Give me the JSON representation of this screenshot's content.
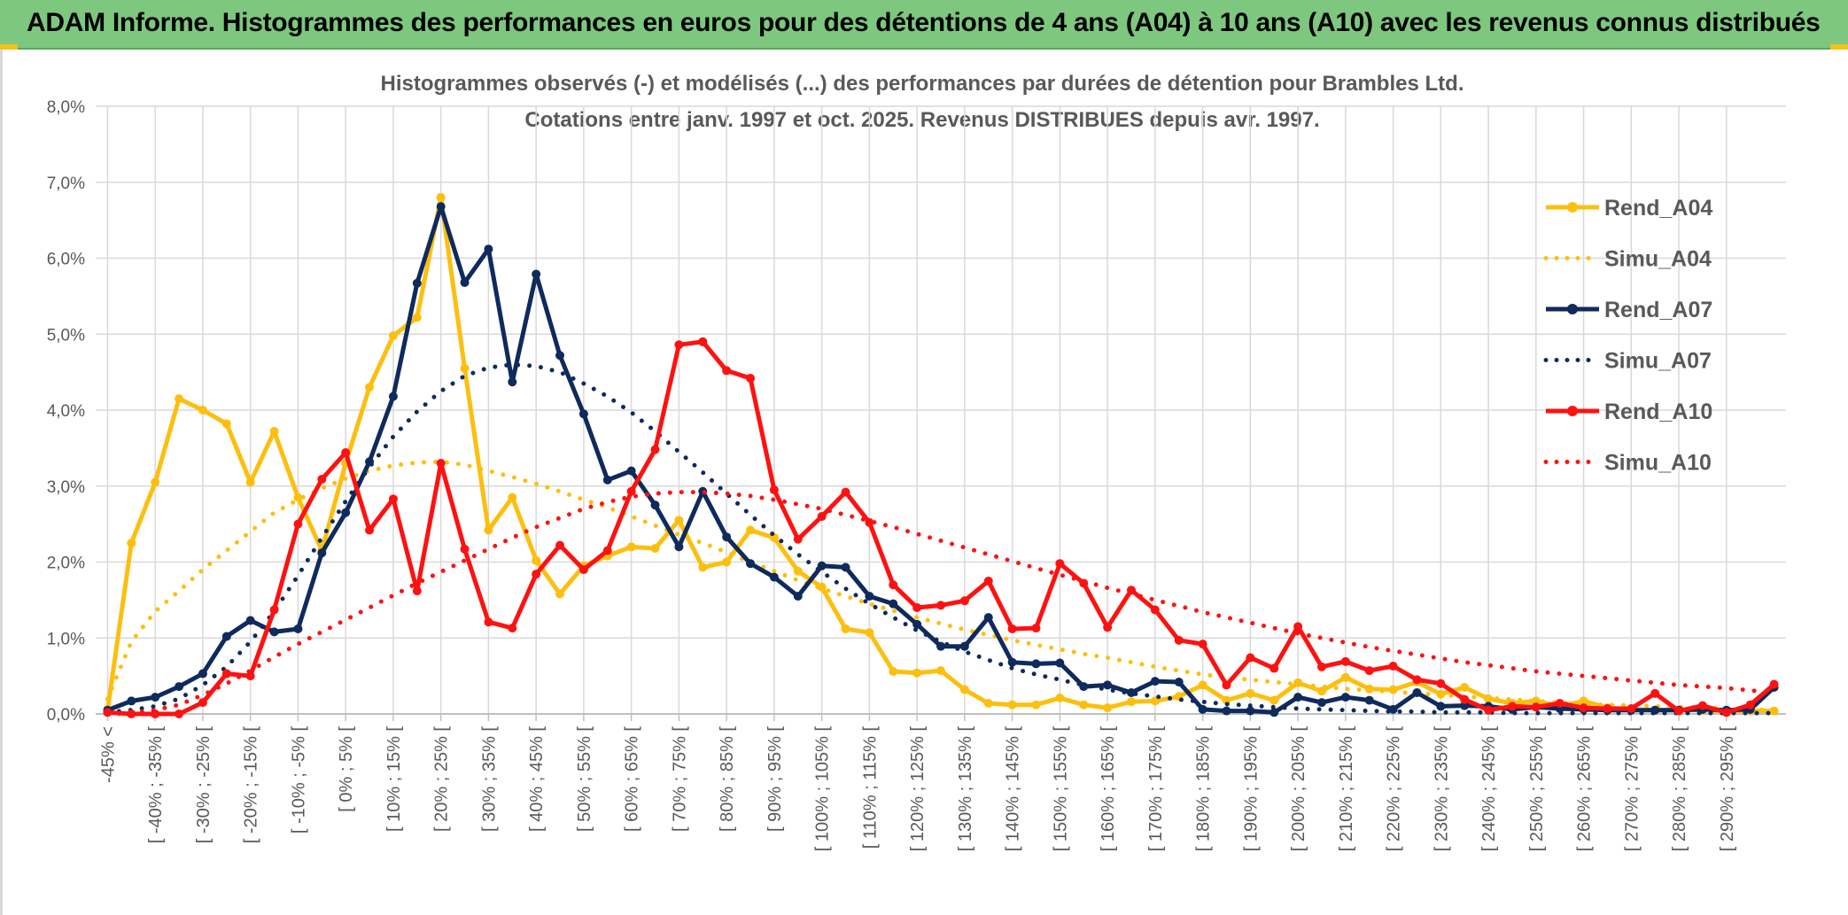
{
  "banner": {
    "title": "ADAM Informe. Histogrammes des performances en euros pour des détentions de 4 ans (A04) à 10 ans (A10) avec les revenus connus distribués"
  },
  "colors": {
    "banner_bg": "#7dc77f",
    "A04": "#fdbf0f",
    "A07": "#0f2a5c",
    "A10": "#ff1111",
    "grid": "#d9d9d9",
    "text": "#595959"
  },
  "chart_data": {
    "type": "line",
    "title_line1": "Histogrammes observés (-) et modélisés (...) des performances par durées de détention pour Brambles Ltd.",
    "title_line2": "Cotations entre janv. 1997 et oct. 2025. Revenus DISTRIBUES depuis avr. 1997.",
    "ylim": [
      0,
      8
    ],
    "yticks": [
      "0,0%",
      "1,0%",
      "2,0%",
      "3,0%",
      "4,0%",
      "5,0%",
      "6,0%",
      "7,0%",
      "8,0%"
    ],
    "categories": [
      "-45% <",
      "[ -45% ; -40% [",
      "[ -40% ; -35% [",
      "[ -35% ; -30% [",
      "[ -30% ; -25% [",
      "[ -25% ; -20% [",
      "[ -20% ; -15% [",
      "[ -15% ; -10% [",
      "[ -10% ; -5% [",
      "[ -5% ; 0% [",
      "[ 0% ; 5% [",
      "[ 5% ; 10% [",
      "[ 10% ; 15% [",
      "[ 15% ; 20% [",
      "[ 20% ; 25% [",
      "[ 25% ; 30% [",
      "[ 30% ; 35% [",
      "[ 35% ; 40% [",
      "[ 40% ; 45% [",
      "[ 45% ; 50% [",
      "[ 50% ; 55% [",
      "[ 55% ; 60% [",
      "[ 60% ; 65% [",
      "[ 65% ; 70% [",
      "[ 70% ; 75% [",
      "[ 75% ; 80% [",
      "[ 80% ; 85% [",
      "[ 85% ; 90% [",
      "[ 90% ; 95% [",
      "[ 95% ; 100% [",
      "[ 100% ; 105% [",
      "[ 105% ; 110% [",
      "[ 110% ; 115% [",
      "[ 115% ; 120% [",
      "[ 120% ; 125% [",
      "[ 125% ; 130% [",
      "[ 130% ; 135% [",
      "[ 135% ; 140% [",
      "[ 140% ; 145% [",
      "[ 145% ; 150% [",
      "[ 150% ; 155% [",
      "[ 155% ; 160% [",
      "[ 160% ; 165% [",
      "[ 165% ; 170% [",
      "[ 170% ; 175% [",
      "[ 175% ; 180% [",
      "[ 180% ; 185% [",
      "[ 185% ; 190% [",
      "[ 190% ; 195% [",
      "[ 195% ; 200% [",
      "[ 200% ; 205% [",
      "[ 205% ; 210% [",
      "[ 210% ; 215% [",
      "[ 215% ; 220% [",
      "[ 220% ; 225% [",
      "[ 225% ; 230% [",
      "[ 230% ; 235% [",
      "[ 235% ; 240% [",
      "[ 240% ; 245% [",
      "[ 245% ; 250% [",
      "[ 250% ; 255% [",
      "[ 255% ; 260% [",
      "[ 260% ; 265% [",
      "[ 265% ; 270% [",
      "[ 270% ; 275% [",
      "[ 275% ; 280% [",
      "[ 280% ; 285% [",
      "[ 285% ; 290% [",
      "[ 290% ; 295% [",
      "[ 295% ; 300% [",
      ">= 300%"
    ],
    "labeled_categories": [
      "-45% <",
      "[ -40% ; -35% [",
      "[ -30% ; -25% [",
      "[ -20% ; -15% [",
      "[ -10% ; -5% [",
      "[ 0% ; 5% [",
      "[ 10% ; 15% [",
      "[ 20% ; 25% [",
      "[ 30% ; 35% [",
      "[ 40% ; 45% [",
      "[ 50% ; 55% [",
      "[ 60% ; 65% [",
      "[ 70% ; 75% [",
      "[ 80% ; 85% [",
      "[ 90% ; 95% [",
      "[ 100% ; 105% [",
      "[ 110% ; 115% [",
      "[ 120% ; 125% [",
      "[ 130% ; 135% [",
      "[ 140% ; 145% [",
      "[ 150% ; 155% [",
      "[ 160% ; 165% [",
      "[ 170% ; 175% [",
      "[ 180% ; 185% [",
      "[ 190% ; 195% [",
      "[ 200% ; 205% [",
      "[ 210% ; 215% [",
      "[ 220% ; 225% [",
      "[ 230% ; 235% [",
      "[ 240% ; 245% [",
      "[ 250% ; 255% [",
      "[ 260% ; 265% [",
      "[ 270% ; 275% [",
      "[ 280% ; 285% [",
      "[ 290% ; 295% ["
    ],
    "series": [
      {
        "name": "Rend_A04",
        "style": "solid",
        "color": "#fdbf0f",
        "values": [
          0.05,
          2.25,
          3.05,
          4.15,
          4.0,
          3.82,
          3.05,
          3.72,
          2.85,
          2.15,
          3.3,
          4.3,
          4.98,
          5.22,
          6.8,
          4.55,
          2.42,
          2.85,
          2.02,
          1.58,
          1.95,
          2.08,
          2.2,
          2.18,
          2.55,
          1.93,
          2.0,
          2.42,
          2.32,
          1.88,
          1.67,
          1.12,
          1.07,
          0.56,
          0.54,
          0.57,
          0.32,
          0.14,
          0.12,
          0.12,
          0.21,
          0.12,
          0.08,
          0.16,
          0.17,
          0.23,
          0.38,
          0.18,
          0.27,
          0.18,
          0.41,
          0.3,
          0.48,
          0.33,
          0.32,
          0.42,
          0.26,
          0.35,
          0.2,
          0.14,
          0.17,
          0.1,
          0.17,
          0.08,
          0.06,
          0.05,
          0.05,
          0.05,
          0.03,
          0.04,
          0.04
        ]
      },
      {
        "name": "Simu_A04",
        "style": "dotted",
        "color": "#fdbf0f",
        "values": [
          0.2,
          0.95,
          1.35,
          1.62,
          1.9,
          2.15,
          2.4,
          2.65,
          2.82,
          2.97,
          3.1,
          3.2,
          3.27,
          3.31,
          3.32,
          3.28,
          3.2,
          3.12,
          3.03,
          2.93,
          2.82,
          2.72,
          2.6,
          2.48,
          2.36,
          2.25,
          2.13,
          2.0,
          1.88,
          1.76,
          1.65,
          1.55,
          1.45,
          1.36,
          1.27,
          1.19,
          1.11,
          1.04,
          0.97,
          0.91,
          0.85,
          0.79,
          0.74,
          0.68,
          0.62,
          0.57,
          0.52,
          0.48,
          0.45,
          0.42,
          0.39,
          0.36,
          0.33,
          0.31,
          0.29,
          0.27,
          0.25,
          0.23,
          0.21,
          0.19,
          0.17,
          0.15,
          0.13,
          0.12,
          0.11,
          0.1,
          0.09,
          0.08,
          0.07,
          0.06,
          0.05
        ]
      },
      {
        "name": "Rend_A07",
        "style": "solid",
        "color": "#0f2a5c",
        "values": [
          0.05,
          0.17,
          0.22,
          0.36,
          0.53,
          1.02,
          1.23,
          1.08,
          1.12,
          2.12,
          2.65,
          3.32,
          4.18,
          5.67,
          6.68,
          5.68,
          6.12,
          4.37,
          5.79,
          4.72,
          3.95,
          3.08,
          3.2,
          2.75,
          2.2,
          2.93,
          2.33,
          1.98,
          1.8,
          1.55,
          1.95,
          1.93,
          1.55,
          1.45,
          1.18,
          0.89,
          0.89,
          1.27,
          0.68,
          0.66,
          0.67,
          0.36,
          0.38,
          0.28,
          0.43,
          0.42,
          0.06,
          0.04,
          0.04,
          0.02,
          0.22,
          0.15,
          0.22,
          0.18,
          0.06,
          0.28,
          0.1,
          0.11,
          0.1,
          0.06,
          0.09,
          0.07,
          0.06,
          0.05,
          0.05,
          0.05,
          0.05,
          0.06,
          0.05,
          0.06,
          0.35
        ]
      },
      {
        "name": "Simu_A07",
        "style": "dotted",
        "color": "#0f2a5c",
        "values": [
          0.02,
          0.05,
          0.1,
          0.2,
          0.38,
          0.62,
          0.95,
          1.35,
          1.82,
          2.32,
          2.8,
          3.25,
          3.65,
          3.98,
          4.25,
          4.45,
          4.56,
          4.6,
          4.58,
          4.5,
          4.35,
          4.18,
          3.97,
          3.72,
          3.45,
          3.18,
          2.9,
          2.62,
          2.35,
          2.1,
          1.87,
          1.65,
          1.45,
          1.27,
          1.1,
          0.95,
          0.82,
          0.71,
          0.6,
          0.52,
          0.45,
          0.38,
          0.32,
          0.27,
          0.23,
          0.19,
          0.16,
          0.13,
          0.11,
          0.09,
          0.07,
          0.06,
          0.05,
          0.04,
          0.03,
          0.03,
          0.02,
          0.02,
          0.02,
          0.01,
          0.01,
          0.01,
          0.01,
          0.01,
          0.01,
          0.01,
          0.01,
          0.01,
          0.01,
          0.01,
          0.01
        ]
      },
      {
        "name": "Rend_A10",
        "style": "solid",
        "color": "#ff1111",
        "values": [
          0.02,
          0.0,
          0.0,
          0.0,
          0.15,
          0.53,
          0.5,
          1.37,
          2.5,
          3.09,
          3.44,
          2.42,
          2.83,
          1.62,
          3.3,
          2.17,
          1.21,
          1.13,
          1.84,
          2.22,
          1.9,
          2.15,
          2.93,
          3.48,
          4.86,
          4.9,
          4.52,
          4.42,
          2.95,
          2.3,
          2.6,
          2.92,
          2.52,
          1.7,
          1.4,
          1.43,
          1.49,
          1.75,
          1.12,
          1.13,
          1.98,
          1.72,
          1.14,
          1.63,
          1.37,
          0.97,
          0.92,
          0.38,
          0.74,
          0.6,
          1.15,
          0.62,
          0.69,
          0.57,
          0.63,
          0.45,
          0.4,
          0.19,
          0.05,
          0.1,
          0.09,
          0.14,
          0.08,
          0.07,
          0.07,
          0.27,
          0.04,
          0.11,
          0.02,
          0.12,
          0.39
        ]
      },
      {
        "name": "Simu_A10",
        "style": "dotted",
        "color": "#ff1111",
        "values": [
          0.0,
          0.01,
          0.05,
          0.12,
          0.25,
          0.4,
          0.57,
          0.75,
          0.92,
          1.08,
          1.24,
          1.4,
          1.56,
          1.72,
          1.87,
          2.02,
          2.17,
          2.32,
          2.46,
          2.58,
          2.7,
          2.79,
          2.86,
          2.9,
          2.92,
          2.92,
          2.9,
          2.87,
          2.82,
          2.76,
          2.7,
          2.62,
          2.54,
          2.46,
          2.37,
          2.28,
          2.19,
          2.1,
          2.01,
          1.92,
          1.83,
          1.75,
          1.66,
          1.58,
          1.5,
          1.42,
          1.34,
          1.27,
          1.2,
          1.13,
          1.06,
          1.0,
          0.94,
          0.88,
          0.83,
          0.78,
          0.73,
          0.68,
          0.64,
          0.6,
          0.56,
          0.53,
          0.5,
          0.47,
          0.44,
          0.41,
          0.38,
          0.36,
          0.34,
          0.31,
          0.28
        ]
      }
    ],
    "legend": [
      "Rend_A04",
      "Simu_A04",
      "Rend_A07",
      "Simu_A07",
      "Rend_A10",
      "Simu_A10"
    ],
    "legend_position": "top-right",
    "grid": true,
    "xlabel": "",
    "ylabel": ""
  }
}
